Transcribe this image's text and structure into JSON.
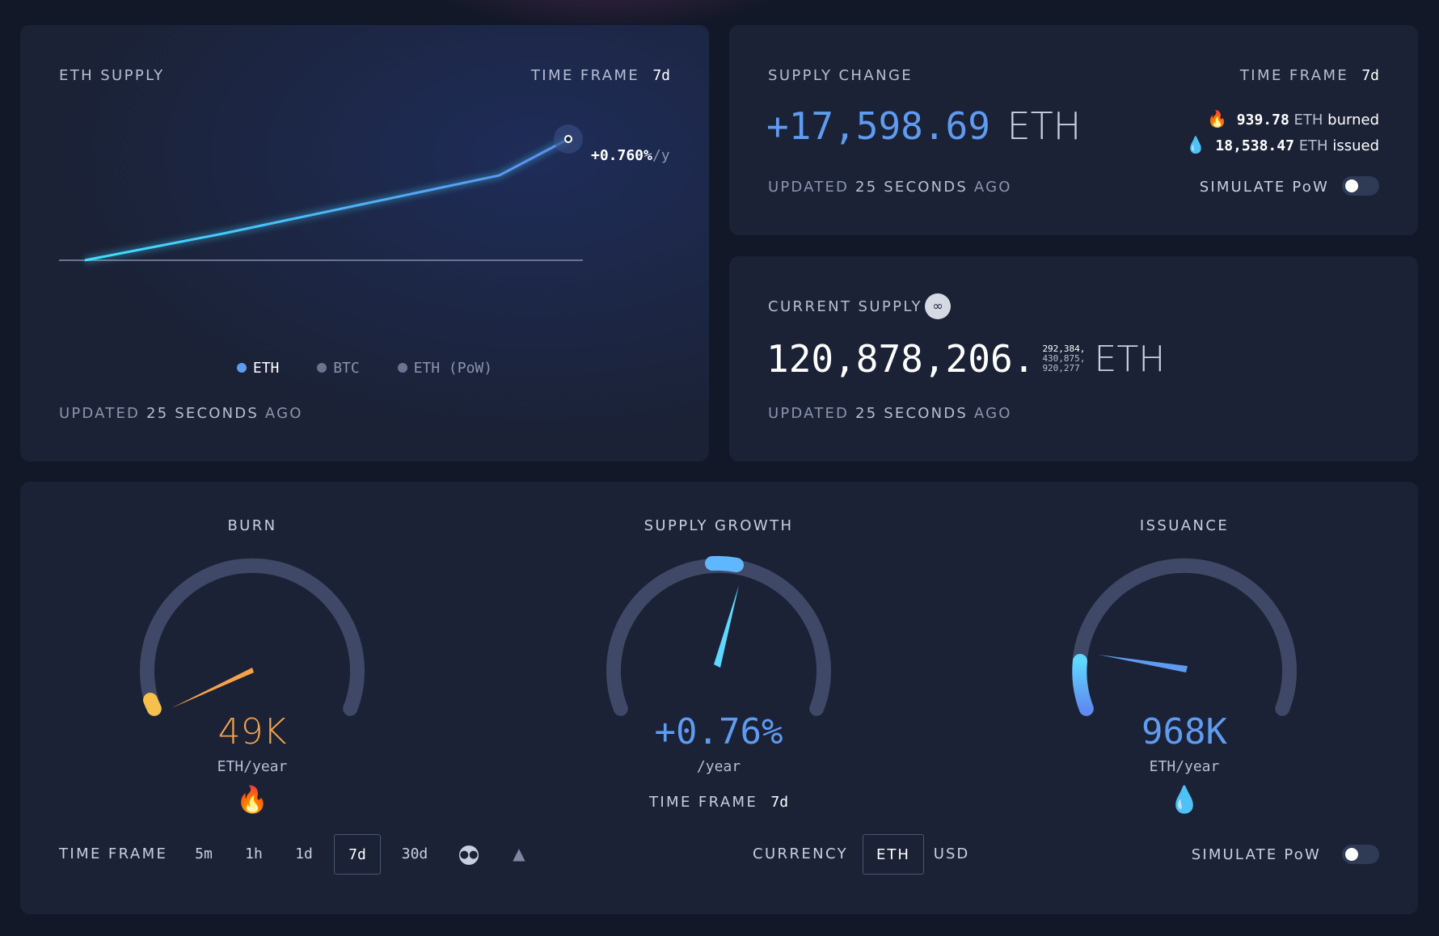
{
  "eth_supply": {
    "title": "ETH SUPPLY",
    "time_frame_label": "TIME FRAME",
    "time_frame_value": "7d",
    "rate": "+0.760%",
    "rate_unit": "/y",
    "legend": [
      "ETH",
      "BTC",
      "ETH (PoW)"
    ],
    "updated_prefix": "UPDATED",
    "updated_value": "25 SECONDS",
    "updated_suffix": "AGO"
  },
  "chart_data": {
    "type": "line",
    "title": "",
    "xlabel": "",
    "ylabel": "",
    "series": [
      {
        "name": "ETH",
        "x": [
          0,
          1,
          2,
          3,
          4,
          5,
          6,
          7
        ],
        "values": [
          0,
          0.11,
          0.22,
          0.34,
          0.46,
          0.58,
          0.7,
          1.0
        ]
      }
    ],
    "grid": false,
    "legend_position": "bottom"
  },
  "supply_change": {
    "title": "SUPPLY CHANGE",
    "time_frame_label": "TIME FRAME",
    "time_frame_value": "7d",
    "value": "+17,598.69",
    "unit": "ETH",
    "burned_value": "939.78",
    "burned_unit": "ETH",
    "burned_label": "burned",
    "issued_value": "18,538.47",
    "issued_unit": "ETH",
    "issued_label": "issued",
    "updated_prefix": "UPDATED",
    "updated_value": "25 SECONDS",
    "updated_suffix": "AGO",
    "simulate_label": "SIMULATE PoW"
  },
  "current_supply": {
    "title": "CURRENT SUPPLY",
    "integer": "120,878,206.",
    "decimals": [
      "292,384,",
      "430,875,",
      "920,277"
    ],
    "unit": "ETH",
    "updated_prefix": "UPDATED",
    "updated_value": "25 SECONDS",
    "updated_suffix": "AGO"
  },
  "gauges": {
    "burn": {
      "title": "BURN",
      "value": "49K",
      "unit": "ETH/year",
      "color": "#f5a34b",
      "level": 0.05
    },
    "growth": {
      "title": "SUPPLY GROWTH",
      "value": "+0.76%",
      "unit": "/year",
      "color": "#5fb8ff",
      "time_frame_label": "TIME FRAME",
      "time_frame_value": "7d"
    },
    "issuance": {
      "title": "ISSUANCE",
      "value": "968K",
      "unit": "ETH/year",
      "color": "#5f9bf0",
      "level": 0.18
    }
  },
  "controls": {
    "time_frame_label": "TIME FRAME",
    "time_frames": [
      "5m",
      "1h",
      "1d",
      "7d",
      "30d"
    ],
    "active_time_frame": "7d",
    "currency_label": "CURRENCY",
    "currencies": [
      "ETH",
      "USD"
    ],
    "active_currency": "ETH",
    "simulate_label": "SIMULATE PoW"
  },
  "colors": {
    "background": "#121827",
    "card": "#1b2236",
    "accent_blue": "#5f9bf0",
    "accent_orange": "#f5a34b",
    "line_cyan": "#3fd0ff"
  }
}
